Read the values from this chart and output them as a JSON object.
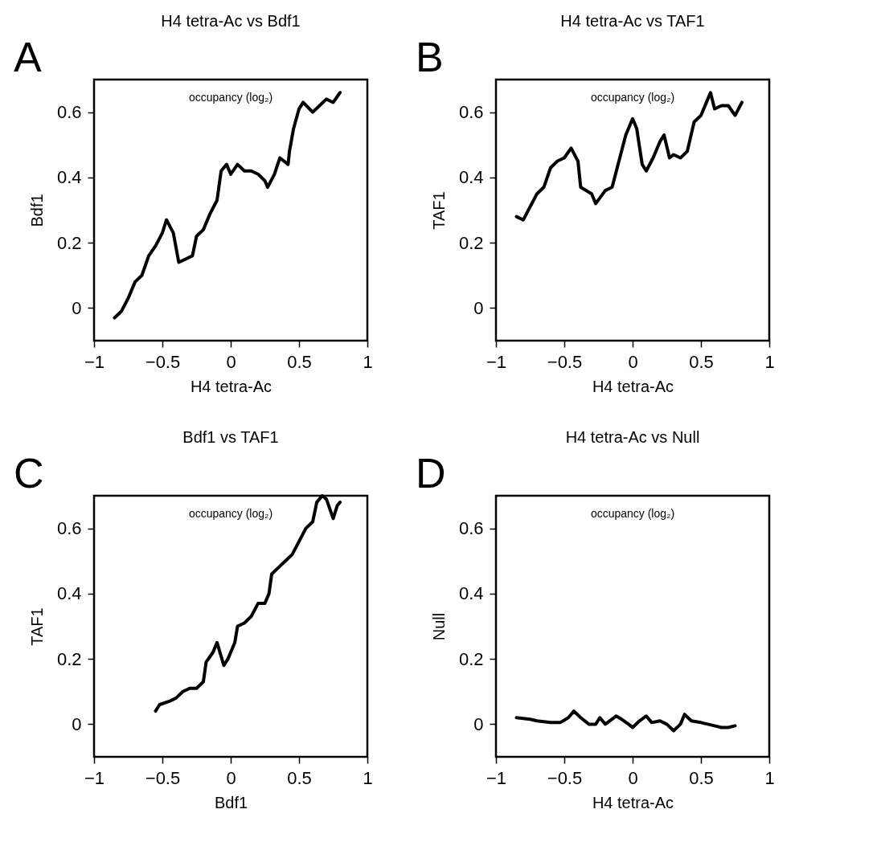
{
  "chart_data": [
    {
      "type": "line",
      "title": "H4 tetra-Ac vs Bdf1",
      "xlabel": "H4 tetra-Ac",
      "ylabel": "Bdf1",
      "annotations": [
        "A",
        "occupancy (log₂)"
      ],
      "xlim": [
        -1,
        1
      ],
      "xticks": [
        -1,
        -0.5,
        0,
        0.5,
        1
      ],
      "ylim": [
        -0.1,
        0.7
      ],
      "yticks": [
        0,
        0.2,
        0.4,
        0.6
      ],
      "grid": false,
      "marker": "none",
      "line_style": "solid",
      "series": [
        {
          "color": "#000000",
          "x": [
            -0.85,
            -0.8,
            -0.75,
            -0.7,
            -0.65,
            -0.6,
            -0.55,
            -0.5,
            -0.47,
            -0.42,
            -0.38,
            -0.33,
            -0.28,
            -0.25,
            -0.2,
            -0.15,
            -0.1,
            -0.07,
            -0.03,
            0.0,
            0.05,
            0.1,
            0.15,
            0.2,
            0.25,
            0.27,
            0.32,
            0.36,
            0.42,
            0.43,
            0.46,
            0.5,
            0.53,
            0.6,
            0.65,
            0.7,
            0.75,
            0.8
          ],
          "values": [
            -0.03,
            -0.01,
            0.03,
            0.08,
            0.1,
            0.16,
            0.19,
            0.23,
            0.27,
            0.23,
            0.14,
            0.15,
            0.16,
            0.22,
            0.24,
            0.29,
            0.33,
            0.42,
            0.44,
            0.41,
            0.44,
            0.42,
            0.42,
            0.41,
            0.39,
            0.37,
            0.41,
            0.46,
            0.44,
            0.48,
            0.55,
            0.61,
            0.63,
            0.6,
            0.62,
            0.64,
            0.63,
            0.66
          ]
        }
      ]
    },
    {
      "type": "line",
      "title": "H4 tetra-Ac vs TAF1",
      "xlabel": "H4 tetra-Ac",
      "ylabel": "TAF1",
      "annotations": [
        "B",
        "occupancy (log₂)"
      ],
      "xlim": [
        -1,
        1
      ],
      "xticks": [
        -1,
        -0.5,
        0,
        0.5,
        1
      ],
      "ylim": [
        -0.1,
        0.7
      ],
      "yticks": [
        0,
        0.2,
        0.4,
        0.6
      ],
      "grid": false,
      "marker": "none",
      "line_style": "solid",
      "series": [
        {
          "color": "#000000",
          "x": [
            -0.85,
            -0.8,
            -0.75,
            -0.7,
            -0.65,
            -0.6,
            -0.55,
            -0.5,
            -0.45,
            -0.4,
            -0.38,
            -0.3,
            -0.27,
            -0.2,
            -0.15,
            -0.1,
            -0.05,
            0.0,
            0.03,
            0.07,
            0.1,
            0.15,
            0.2,
            0.23,
            0.27,
            0.3,
            0.35,
            0.4,
            0.45,
            0.5,
            0.55,
            0.57,
            0.6,
            0.65,
            0.7,
            0.75,
            0.8
          ],
          "values": [
            0.28,
            0.27,
            0.31,
            0.35,
            0.37,
            0.43,
            0.45,
            0.46,
            0.49,
            0.45,
            0.37,
            0.35,
            0.32,
            0.36,
            0.37,
            0.45,
            0.53,
            0.58,
            0.55,
            0.44,
            0.42,
            0.46,
            0.51,
            0.53,
            0.46,
            0.47,
            0.46,
            0.48,
            0.57,
            0.59,
            0.64,
            0.66,
            0.61,
            0.62,
            0.62,
            0.59,
            0.63
          ]
        }
      ]
    },
    {
      "type": "line",
      "title": "Bdf1 vs TAF1",
      "xlabel": "Bdf1",
      "ylabel": "TAF1",
      "annotations": [
        "C",
        "occupancy (log₂)"
      ],
      "xlim": [
        -1,
        1
      ],
      "xticks": [
        -1,
        -0.5,
        0,
        0.5,
        1
      ],
      "ylim": [
        -0.1,
        0.7
      ],
      "yticks": [
        0,
        0.2,
        0.4,
        0.6
      ],
      "grid": false,
      "marker": "none",
      "line_style": "solid",
      "series": [
        {
          "color": "#000000",
          "x": [
            -0.55,
            -0.52,
            -0.45,
            -0.4,
            -0.35,
            -0.3,
            -0.25,
            -0.2,
            -0.18,
            -0.13,
            -0.1,
            -0.05,
            -0.02,
            0.0,
            0.03,
            0.05,
            0.1,
            0.15,
            0.2,
            0.25,
            0.28,
            0.3,
            0.35,
            0.4,
            0.45,
            0.5,
            0.55,
            0.6,
            0.63,
            0.67,
            0.7,
            0.75,
            0.78,
            0.8
          ],
          "values": [
            0.04,
            0.06,
            0.07,
            0.08,
            0.1,
            0.11,
            0.11,
            0.13,
            0.19,
            0.22,
            0.25,
            0.18,
            0.2,
            0.22,
            0.25,
            0.3,
            0.31,
            0.33,
            0.37,
            0.37,
            0.4,
            0.46,
            0.48,
            0.5,
            0.52,
            0.56,
            0.6,
            0.62,
            0.68,
            0.7,
            0.69,
            0.63,
            0.67,
            0.68
          ]
        }
      ]
    },
    {
      "type": "line",
      "title": "H4 tetra-Ac vs Null",
      "xlabel": "H4 tetra-Ac",
      "ylabel": "Null",
      "annotations": [
        "D",
        "occupancy (log₂)"
      ],
      "xlim": [
        -1,
        1
      ],
      "xticks": [
        -1,
        -0.5,
        0,
        0.5,
        1
      ],
      "ylim": [
        -0.1,
        0.7
      ],
      "yticks": [
        0,
        0.2,
        0.4,
        0.6
      ],
      "grid": false,
      "marker": "none",
      "line_style": "solid",
      "series": [
        {
          "color": "#000000",
          "x": [
            -0.85,
            -0.75,
            -0.7,
            -0.6,
            -0.53,
            -0.47,
            -0.43,
            -0.38,
            -0.32,
            -0.27,
            -0.24,
            -0.2,
            -0.12,
            -0.08,
            -0.03,
            0.0,
            0.05,
            0.1,
            0.14,
            0.2,
            0.25,
            0.3,
            0.35,
            0.38,
            0.43,
            0.5,
            0.55,
            0.6,
            0.65,
            0.7,
            0.75
          ],
          "values": [
            0.02,
            0.015,
            0.01,
            0.005,
            0.005,
            0.02,
            0.04,
            0.02,
            0.0,
            0.0,
            0.02,
            0.0,
            0.025,
            0.015,
            0.0,
            -0.01,
            0.01,
            0.025,
            0.005,
            0.01,
            0.0,
            -0.02,
            0.0,
            0.03,
            0.01,
            0.005,
            0.0,
            -0.005,
            -0.01,
            -0.01,
            -0.005
          ]
        }
      ]
    }
  ]
}
